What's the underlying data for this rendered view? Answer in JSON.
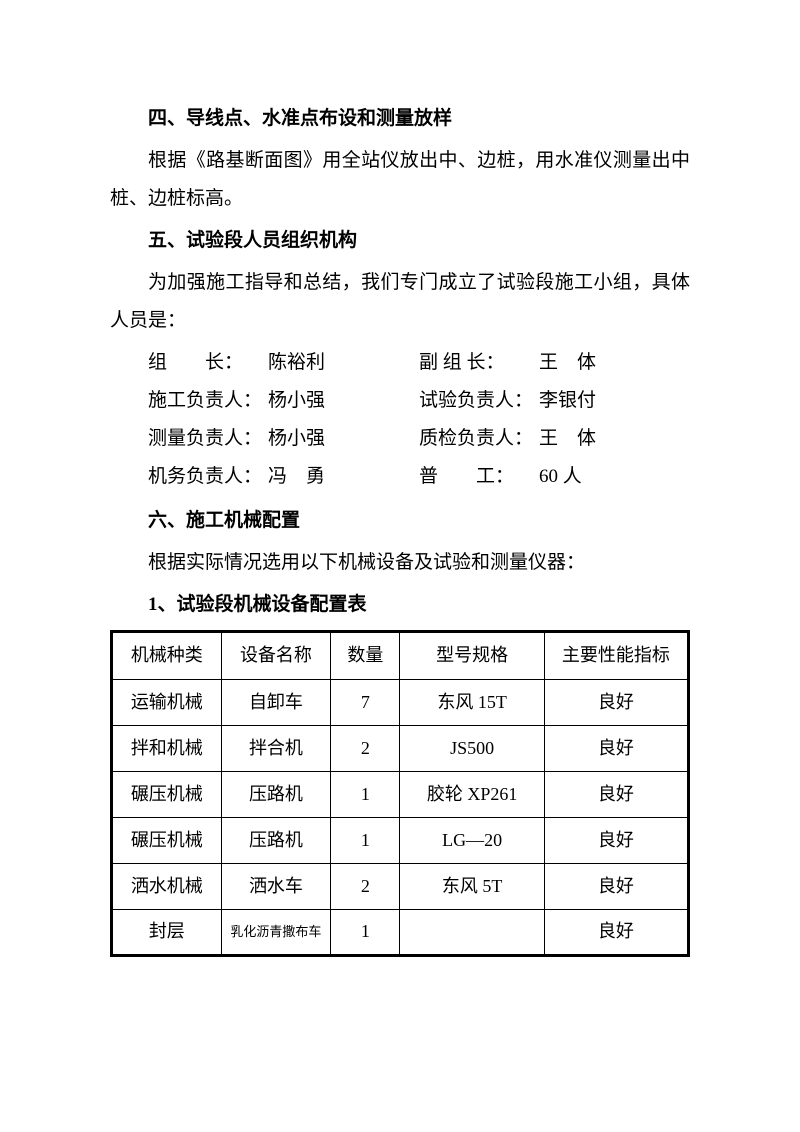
{
  "section4": {
    "heading": "四、导线点、水准点布设和测量放样",
    "body": "根据《路基断面图》用全站仪放出中、边桩，用水准仪测量出中桩、边桩标高。"
  },
  "section5": {
    "heading": "五、试验段人员组织机构",
    "body": "为加强施工指导和总结，我们专门成立了试验段施工小组，具体人员是：",
    "personnel": [
      {
        "l_label": "组　　长：",
        "l_value": "陈裕利",
        "r_label": "副 组 长：",
        "r_value": "王　体"
      },
      {
        "l_label": "施工负责人：",
        "l_value": "杨小强",
        "r_label": "试验负责人：",
        "r_value": "李银付"
      },
      {
        "l_label": "测量负责人：",
        "l_value": "杨小强",
        "r_label": "质检负责人：",
        "r_value": "王　体"
      },
      {
        "l_label": "机务负责人：",
        "l_value": "冯　勇",
        "r_label": "普　　工：",
        "r_value": "60 人"
      }
    ]
  },
  "section6": {
    "heading": "六、施工机械配置",
    "body": "根据实际情况选用以下机械设备及试验和测量仪器：",
    "sub": "1、试验段机械设备配置表",
    "table": {
      "headers": [
        "机械种类",
        "设备名称",
        "数量",
        "型号规格",
        "主要性能指标"
      ],
      "rows": [
        [
          "运输机械",
          "自卸车",
          "7",
          "东风 15T",
          "良好"
        ],
        [
          "拌和机械",
          "拌合机",
          "2",
          "JS500",
          "良好"
        ],
        [
          "碾压机械",
          "压路机",
          "1",
          "胶轮 XP261",
          "良好"
        ],
        [
          "碾压机械",
          "压路机",
          "1",
          "LG—20",
          "良好"
        ],
        [
          "洒水机械",
          "洒水车",
          "2",
          "东风 5T",
          "良好"
        ],
        [
          "封层",
          "乳化沥青撒布车",
          "1",
          "",
          "良好"
        ]
      ]
    }
  }
}
